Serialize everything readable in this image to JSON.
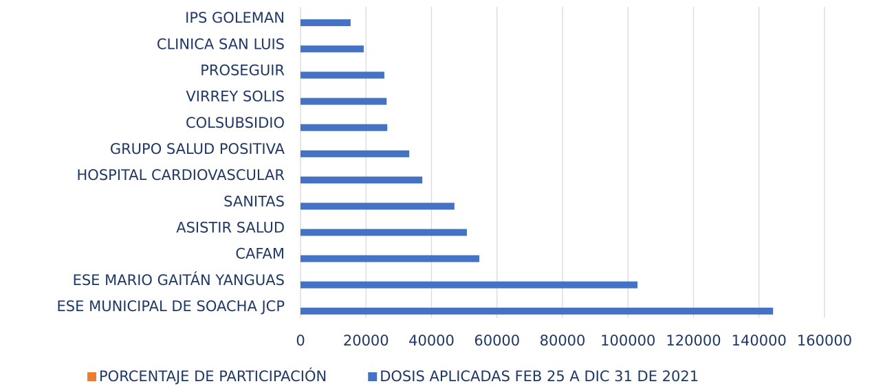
{
  "chart_data": {
    "type": "bar",
    "orientation": "horizontal",
    "categories": [
      "IPS GOLEMAN",
      "CLINICA SAN LUIS",
      "PROSEGUIR",
      "VIRREY SOLIS",
      "COLSUBSIDIO",
      "GRUPO SALUD POSITIVA",
      "HOSPITAL CARDIOVASCULAR",
      "SANITAS",
      "ASISTIR SALUD",
      "CAFAM",
      "ESE MARIO GAITÁN YANGUAS",
      "ESE MUNICIPAL DE SOACHA JCP"
    ],
    "series": [
      {
        "name": "PORCENTAJE DE PARTICIPACIÓN",
        "color": "#ed7d31",
        "values": [
          0,
          0,
          0,
          0,
          0,
          0,
          0,
          0,
          0,
          0,
          0,
          0
        ]
      },
      {
        "name": "DOSIS APLICADAS FEB 25 A DIC 31 DE 2021",
        "color": "#4472c4",
        "values": [
          15300,
          19300,
          25600,
          26300,
          26500,
          33200,
          37200,
          47000,
          50800,
          54600,
          102900,
          144300
        ]
      }
    ],
    "xlim": [
      0,
      160000
    ],
    "xticks": [
      0,
      20000,
      40000,
      60000,
      80000,
      100000,
      120000,
      140000,
      160000
    ],
    "grid": true,
    "legend": "bottom"
  }
}
